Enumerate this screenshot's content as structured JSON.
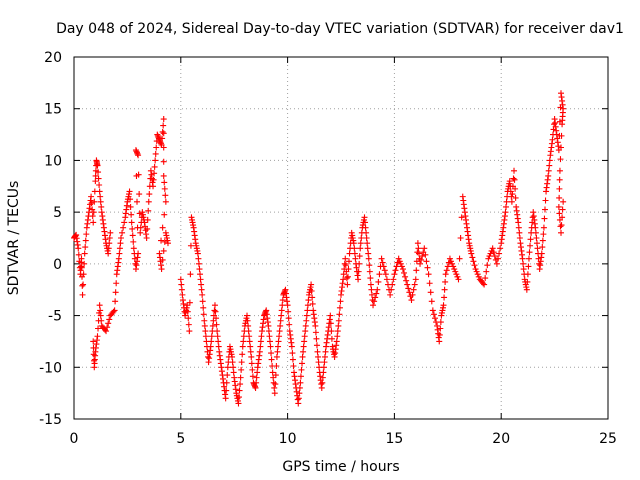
{
  "chart_data": {
    "type": "scatter",
    "title": "Day 048 of 2024, Sidereal Day-to-day VTEC variation (SDTVAR) for receiver dav1",
    "xlabel": "GPS time / hours",
    "ylabel": "SDTVAR / TECUs",
    "xlim": [
      0,
      25
    ],
    "ylim": [
      -15,
      20
    ],
    "xticks": [
      0,
      5,
      10,
      15,
      20,
      25
    ],
    "yticks": [
      -15,
      -10,
      -5,
      0,
      5,
      10,
      15,
      20
    ],
    "grid": true,
    "marker": "+",
    "marker_color": "#ff0000",
    "series": [
      {
        "name": "SDTVAR",
        "points": [
          [
            0.0,
            2.5
          ],
          [
            0.1,
            2.8
          ],
          [
            0.2,
            1.5
          ],
          [
            0.3,
            -1.0
          ],
          [
            0.35,
            0.5
          ],
          [
            0.4,
            -3.0
          ],
          [
            0.5,
            1.0
          ],
          [
            0.6,
            3.5
          ],
          [
            0.7,
            5.0
          ],
          [
            0.8,
            6.5
          ],
          [
            0.9,
            4.0
          ],
          [
            1.0,
            8.0
          ],
          [
            1.05,
            10.0
          ],
          [
            1.1,
            9.5
          ],
          [
            1.2,
            7.0
          ],
          [
            1.3,
            5.0
          ],
          [
            1.4,
            3.5
          ],
          [
            1.5,
            2.0
          ],
          [
            1.6,
            1.0
          ],
          [
            1.7,
            3.0
          ],
          [
            0.9,
            -7.5
          ],
          [
            0.95,
            -10.0
          ],
          [
            1.0,
            -8.5
          ],
          [
            1.1,
            -7.0
          ],
          [
            1.2,
            -4.0
          ],
          [
            1.3,
            -6.0
          ],
          [
            1.5,
            -6.5
          ],
          [
            1.7,
            -5.0
          ],
          [
            1.9,
            -4.5
          ],
          [
            2.0,
            -1.0
          ],
          [
            2.1,
            0.5
          ],
          [
            2.2,
            2.5
          ],
          [
            2.4,
            4.5
          ],
          [
            2.5,
            6.0
          ],
          [
            2.6,
            7.0
          ],
          [
            2.7,
            4.0
          ],
          [
            2.8,
            1.5
          ],
          [
            2.9,
            -0.5
          ],
          [
            3.0,
            1.0
          ],
          [
            2.9,
            11.0
          ],
          [
            3.0,
            10.5
          ],
          [
            3.1,
            3.0
          ],
          [
            3.2,
            5.0
          ],
          [
            3.3,
            4.0
          ],
          [
            3.4,
            2.5
          ],
          [
            3.5,
            6.0
          ],
          [
            3.6,
            9.0
          ],
          [
            3.7,
            7.5
          ],
          [
            3.8,
            10.0
          ],
          [
            3.9,
            12.5
          ],
          [
            4.0,
            12.0
          ],
          [
            4.1,
            11.5
          ],
          [
            4.2,
            14.0
          ],
          [
            4.2,
            8.5
          ],
          [
            4.3,
            6.0
          ],
          [
            4.0,
            1.0
          ],
          [
            4.1,
            -0.5
          ],
          [
            4.3,
            3.0
          ],
          [
            4.4,
            2.0
          ],
          [
            5.0,
            -1.5
          ],
          [
            5.1,
            -3.5
          ],
          [
            5.2,
            -5.0
          ],
          [
            5.3,
            -4.0
          ],
          [
            5.4,
            -6.5
          ],
          [
            5.5,
            4.5
          ],
          [
            5.6,
            3.5
          ],
          [
            5.7,
            2.0
          ],
          [
            5.8,
            1.0
          ],
          [
            5.9,
            -1.0
          ],
          [
            6.0,
            -3.0
          ],
          [
            6.1,
            -5.5
          ],
          [
            6.2,
            -7.5
          ],
          [
            6.3,
            -9.5
          ],
          [
            6.4,
            -8.0
          ],
          [
            6.5,
            -6.0
          ],
          [
            6.6,
            -4.0
          ],
          [
            6.7,
            -6.5
          ],
          [
            6.8,
            -8.5
          ],
          [
            6.9,
            -10.0
          ],
          [
            7.0,
            -11.5
          ],
          [
            7.1,
            -13.0
          ],
          [
            7.2,
            -10.0
          ],
          [
            7.3,
            -8.0
          ],
          [
            7.4,
            -9.0
          ],
          [
            7.5,
            -11.0
          ],
          [
            7.6,
            -12.5
          ],
          [
            7.7,
            -13.5
          ],
          [
            7.8,
            -11.0
          ],
          [
            7.9,
            -8.0
          ],
          [
            8.0,
            -6.0
          ],
          [
            8.1,
            -5.0
          ],
          [
            8.2,
            -7.0
          ],
          [
            8.3,
            -9.0
          ],
          [
            8.4,
            -11.5
          ],
          [
            8.5,
            -12.0
          ],
          [
            8.6,
            -10.0
          ],
          [
            8.7,
            -8.5
          ],
          [
            8.8,
            -6.5
          ],
          [
            8.9,
            -5.0
          ],
          [
            9.0,
            -4.5
          ],
          [
            9.1,
            -6.0
          ],
          [
            9.2,
            -8.0
          ],
          [
            9.3,
            -10.5
          ],
          [
            9.4,
            -12.5
          ],
          [
            9.5,
            -9.0
          ],
          [
            9.6,
            -7.0
          ],
          [
            9.7,
            -5.0
          ],
          [
            9.8,
            -3.0
          ],
          [
            9.9,
            -2.5
          ],
          [
            10.0,
            -4.0
          ],
          [
            10.1,
            -6.5
          ],
          [
            10.2,
            -8.0
          ],
          [
            10.3,
            -10.5
          ],
          [
            10.4,
            -12.0
          ],
          [
            10.5,
            -13.5
          ],
          [
            10.6,
            -11.5
          ],
          [
            10.7,
            -9.0
          ],
          [
            10.8,
            -7.0
          ],
          [
            10.9,
            -5.0
          ],
          [
            11.0,
            -3.0
          ],
          [
            11.1,
            -2.0
          ],
          [
            11.2,
            -4.5
          ],
          [
            11.3,
            -6.0
          ],
          [
            11.4,
            -8.5
          ],
          [
            11.5,
            -10.5
          ],
          [
            11.6,
            -12.0
          ],
          [
            11.7,
            -10.0
          ],
          [
            11.8,
            -8.0
          ],
          [
            11.9,
            -6.5
          ],
          [
            12.0,
            -5.0
          ],
          [
            12.1,
            -8.0
          ],
          [
            12.2,
            -9.0
          ],
          [
            12.3,
            -7.5
          ],
          [
            12.4,
            -5.5
          ],
          [
            12.5,
            -3.0
          ],
          [
            12.6,
            -1.5
          ],
          [
            12.7,
            0.5
          ],
          [
            12.8,
            -2.0
          ],
          [
            12.9,
            1.0
          ],
          [
            13.0,
            3.0
          ],
          [
            13.1,
            2.0
          ],
          [
            13.2,
            0.0
          ],
          [
            13.3,
            -1.5
          ],
          [
            13.4,
            1.5
          ],
          [
            13.5,
            3.5
          ],
          [
            13.6,
            4.5
          ],
          [
            13.7,
            2.5
          ],
          [
            13.8,
            0.5
          ],
          [
            13.9,
            -2.0
          ],
          [
            14.0,
            -4.0
          ],
          [
            14.2,
            -2.5
          ],
          [
            14.4,
            0.5
          ],
          [
            14.6,
            -1.0
          ],
          [
            14.8,
            -3.0
          ],
          [
            15.0,
            -1.0
          ],
          [
            15.2,
            0.5
          ],
          [
            15.4,
            -0.5
          ],
          [
            15.6,
            -2.0
          ],
          [
            15.8,
            -3.5
          ],
          [
            16.0,
            -1.5
          ],
          [
            16.1,
            2.0
          ],
          [
            16.2,
            0.0
          ],
          [
            16.4,
            1.5
          ],
          [
            16.6,
            -1.0
          ],
          [
            16.8,
            -4.5
          ],
          [
            17.0,
            -6.0
          ],
          [
            17.1,
            -7.5
          ],
          [
            17.2,
            -5.0
          ],
          [
            17.3,
            -4.0
          ],
          [
            17.4,
            -1.0
          ],
          [
            17.6,
            0.5
          ],
          [
            17.8,
            -0.5
          ],
          [
            18.0,
            -1.5
          ],
          [
            18.2,
            6.5
          ],
          [
            18.3,
            5.0
          ],
          [
            18.4,
            3.5
          ],
          [
            18.5,
            2.0
          ],
          [
            18.6,
            1.0
          ],
          [
            18.8,
            -0.5
          ],
          [
            19.0,
            -1.5
          ],
          [
            19.2,
            -2.0
          ],
          [
            19.4,
            0.5
          ],
          [
            19.6,
            1.5
          ],
          [
            19.8,
            0.0
          ],
          [
            20.0,
            2.0
          ],
          [
            20.1,
            3.5
          ],
          [
            20.2,
            5.0
          ],
          [
            20.3,
            7.0
          ],
          [
            20.4,
            8.0
          ],
          [
            20.5,
            6.0
          ],
          [
            20.6,
            9.0
          ],
          [
            20.7,
            5.5
          ],
          [
            20.8,
            4.0
          ],
          [
            20.9,
            2.0
          ],
          [
            21.0,
            0.5
          ],
          [
            21.1,
            -1.5
          ],
          [
            21.2,
            -2.5
          ],
          [
            21.3,
            0.5
          ],
          [
            21.4,
            3.0
          ],
          [
            21.5,
            5.0
          ],
          [
            21.6,
            3.5
          ],
          [
            21.7,
            1.5
          ],
          [
            21.8,
            -0.5
          ],
          [
            21.9,
            1.0
          ],
          [
            22.0,
            3.5
          ],
          [
            22.1,
            7.0
          ],
          [
            22.2,
            8.5
          ],
          [
            22.3,
            10.5
          ],
          [
            22.4,
            12.0
          ],
          [
            22.5,
            14.0
          ],
          [
            22.6,
            12.5
          ],
          [
            22.7,
            11.0
          ],
          [
            22.8,
            16.5
          ],
          [
            22.9,
            15.0
          ],
          [
            22.85,
            13.5
          ],
          [
            22.75,
            9.0
          ],
          [
            22.7,
            5.5
          ],
          [
            22.8,
            3.0
          ],
          [
            22.9,
            6.0
          ]
        ]
      }
    ]
  }
}
